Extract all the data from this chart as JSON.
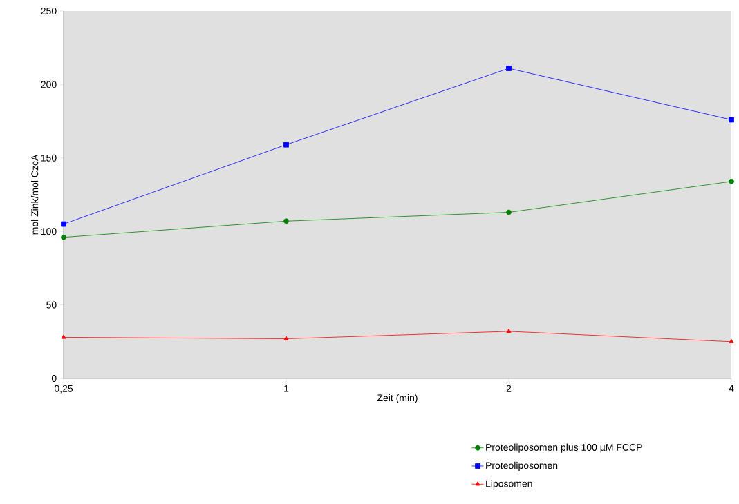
{
  "chart_data": {
    "type": "line",
    "xlabel": "Zeit (min)",
    "ylabel": "mol Zink/mol CzcA",
    "categories": [
      "0,25",
      "1",
      "2",
      "4"
    ],
    "series": [
      {
        "name": "Proteoliposomen plus 100 µM FCCP",
        "color": "#008000",
        "marker": "circle",
        "values": [
          96,
          107,
          113,
          134
        ]
      },
      {
        "name": "Proteoliposomen",
        "color": "#0000ff",
        "marker": "square",
        "values": [
          105,
          159,
          211,
          176
        ]
      },
      {
        "name": "Liposomen",
        "color": "#ff0000",
        "marker": "triangle",
        "values": [
          28,
          27,
          32,
          25
        ]
      }
    ],
    "ylim": [
      0,
      250
    ],
    "yticks": [
      0,
      50,
      100,
      150,
      200,
      250
    ],
    "legend": "bottom",
    "grid": false,
    "line_style": "solid"
  }
}
